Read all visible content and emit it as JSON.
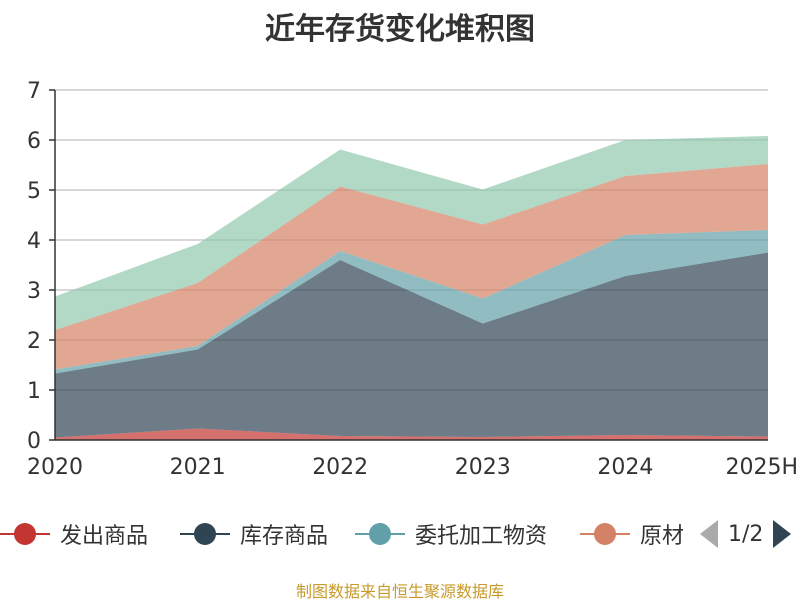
{
  "chart_data": {
    "type": "area",
    "stacked": true,
    "title": "近年存货变化堆积图",
    "ylabel": "",
    "categories": [
      "2020",
      "2021",
      "2022",
      "2023",
      "2024",
      "2025H"
    ],
    "ylim": [
      0,
      7
    ],
    "yticks": [
      0,
      1,
      2,
      3,
      4,
      5,
      6,
      7
    ],
    "grid": true,
    "legend_position": "bottom",
    "series": [
      {
        "name": "发出商品",
        "color": "#c23531",
        "values": [
          0.05,
          0.23,
          0.08,
          0.06,
          0.1,
          0.07
        ]
      },
      {
        "name": "库存商品",
        "color": "#2f4554",
        "values": [
          1.28,
          1.58,
          3.52,
          2.27,
          3.18,
          3.68
        ]
      },
      {
        "name": "委托加工物资",
        "color": "#61a0a8",
        "values": [
          0.08,
          0.07,
          0.18,
          0.5,
          0.82,
          0.45
        ]
      },
      {
        "name": "原材料",
        "color": "#d48265",
        "values": [
          0.79,
          1.26,
          1.29,
          1.48,
          1.18,
          1.32
        ]
      },
      {
        "name": "",
        "color": "#91c7ae",
        "values": [
          0.67,
          0.78,
          0.74,
          0.7,
          0.72,
          0.56
        ]
      }
    ]
  },
  "legend": {
    "labels": [
      "发出商品",
      "库存商品",
      "委托加工物资",
      "原材料"
    ],
    "pager_text": "1/2"
  },
  "source_note": "制图数据来自恒生聚源数据库"
}
